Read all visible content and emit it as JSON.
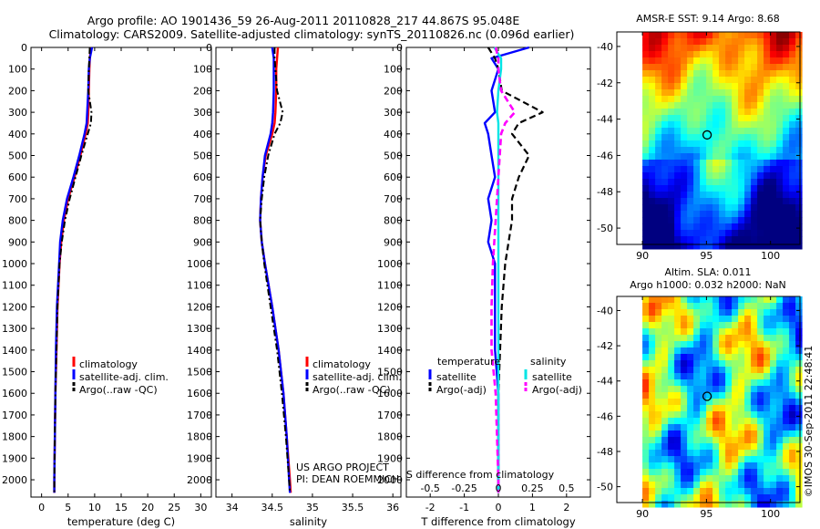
{
  "header": {
    "line1": "Argo profile: AO 1901436_59 26-Aug-2011 20110828_217 44.867S 95.048E",
    "line2": "Climatology: CARS2009. Satellite-adjusted climatology: synTS_20110826.nc (0.096d earlier)"
  },
  "colors": {
    "climatology": "#ff0000",
    "satellite": "#0000ff",
    "argo": "#000000",
    "t_satellite": "#0000ff",
    "s_satellite": "#00e5e5",
    "t_argo": "#000000",
    "s_argo": "#ff00ff"
  },
  "depth_ticks": [
    "0",
    "100",
    "200",
    "300",
    "400",
    "500",
    "600",
    "700",
    "800",
    "900",
    "1000",
    "1100",
    "1200",
    "1300",
    "1400",
    "1500",
    "1600",
    "1700",
    "1800",
    "1900",
    "2000"
  ],
  "chart_data": [
    {
      "type": "line",
      "name": "temperature",
      "xlabel": "temperature (deg C)",
      "xticks": [
        "0",
        "5",
        "10",
        "15",
        "20",
        "25",
        "30"
      ],
      "xlim": [
        -2,
        32
      ],
      "ylim": [
        2080,
        0
      ],
      "legend": [
        "climatology",
        "satellite-adj. clim.",
        "Argo(..raw -QC)"
      ],
      "depth": [
        0,
        50,
        100,
        200,
        300,
        350,
        400,
        500,
        600,
        700,
        800,
        900,
        1000,
        1200,
        1400,
        1600,
        1800,
        2000,
        2060
      ],
      "series": [
        {
          "name": "climatology",
          "values": [
            9.3,
            9.1,
            9.0,
            8.9,
            8.8,
            8.7,
            8.3,
            7.3,
            6.2,
            5.0,
            4.2,
            3.7,
            3.4,
            3.0,
            2.8,
            2.6,
            2.5,
            2.4,
            2.4
          ]
        },
        {
          "name": "satellite-adj. clim.",
          "values": [
            9.5,
            9.1,
            8.9,
            8.8,
            8.6,
            8.5,
            8.1,
            7.1,
            6.0,
            4.8,
            4.0,
            3.5,
            3.3,
            2.9,
            2.7,
            2.6,
            2.5,
            2.4,
            2.4
          ]
        },
        {
          "name": "Argo(..raw -QC)",
          "values": [
            9.1,
            9.0,
            8.9,
            8.8,
            9.4,
            9.3,
            8.7,
            7.5,
            6.4,
            5.3,
            4.4,
            3.8,
            3.4,
            3.0,
            2.8,
            2.6,
            2.5,
            2.4,
            2.4
          ]
        }
      ]
    },
    {
      "type": "line",
      "name": "salinity",
      "xlabel": "salinity",
      "xticks": [
        "34",
        "34.5",
        "35",
        "35.5",
        "36"
      ],
      "xlim": [
        33.8,
        36.1
      ],
      "ylim": [
        2080,
        0
      ],
      "legend": [
        "climatology",
        "satellite-adj. clim.",
        "Argo(..raw -QC)"
      ],
      "annotation": [
        "US ARGO PROJECT",
        "PI: DEAN ROEMMICH"
      ],
      "depth": [
        0,
        50,
        100,
        200,
        300,
        350,
        400,
        500,
        600,
        700,
        800,
        900,
        1000,
        1200,
        1400,
        1600,
        1800,
        2000,
        2060
      ],
      "series": [
        {
          "name": "climatology",
          "values": [
            34.57,
            34.56,
            34.55,
            34.55,
            34.54,
            34.53,
            34.5,
            34.42,
            34.38,
            34.36,
            34.35,
            34.37,
            34.41,
            34.5,
            34.58,
            34.64,
            34.68,
            34.72,
            34.73
          ]
        },
        {
          "name": "satellite-adj. clim.",
          "values": [
            34.5,
            34.52,
            34.52,
            34.52,
            34.51,
            34.5,
            34.48,
            34.41,
            34.38,
            34.36,
            34.35,
            34.37,
            34.41,
            34.5,
            34.58,
            34.64,
            34.68,
            34.71,
            34.72
          ]
        },
        {
          "name": "Argo(..raw -QC)",
          "values": [
            34.53,
            34.53,
            34.54,
            34.56,
            34.63,
            34.6,
            34.53,
            34.45,
            34.4,
            34.37,
            34.35,
            34.37,
            34.4,
            34.48,
            34.56,
            34.62,
            34.67,
            34.71,
            34.72
          ]
        }
      ]
    },
    {
      "type": "line",
      "name": "difference",
      "xlabel": "T difference from climatology",
      "xlabel_top": "S difference from climatology",
      "xticks": [
        "-2",
        "-1",
        "0",
        "1",
        "2"
      ],
      "xticks_top": [
        "-0.5",
        "-0.25",
        "0",
        "0.25",
        "0.5"
      ],
      "xlim": [
        -2.7,
        2.7
      ],
      "ylim": [
        2080,
        0
      ],
      "legend_headers": [
        "temperature",
        "salinity"
      ],
      "legend": [
        "satellite",
        "Argo(-adj)",
        "satellite",
        "Argo(-adj)"
      ],
      "depth": [
        0,
        50,
        100,
        200,
        300,
        350,
        400,
        500,
        600,
        700,
        800,
        900,
        1000,
        1200,
        1400,
        1600,
        1800,
        2000,
        2060
      ],
      "series": [
        {
          "name": "satellite",
          "values": [
            0.9,
            -0.2,
            0.0,
            -0.2,
            -0.1,
            -0.4,
            -0.3,
            -0.2,
            -0.1,
            -0.3,
            -0.2,
            -0.3,
            -0.1,
            -0.1,
            -0.1,
            0.0,
            0.0,
            0.0,
            0.0
          ]
        },
        {
          "name": "Argo(-adj)",
          "values": [
            -0.3,
            -0.1,
            0.0,
            0.1,
            1.3,
            0.6,
            0.4,
            0.9,
            0.6,
            0.4,
            0.4,
            0.3,
            0.2,
            0.1,
            0.05,
            0.0,
            0.0,
            0.0,
            0.0
          ]
        },
        {
          "name": "satellite",
          "values": [
            -0.03,
            0.02,
            0.02,
            0.0,
            -0.01,
            0.0,
            0.0,
            0.0,
            0.0,
            0.0,
            0.0,
            0.0,
            0.0,
            0.0,
            0.0,
            0.0,
            0.0,
            0.0,
            0.0
          ]
        },
        {
          "name": "Argo(-adj)",
          "values": [
            -0.02,
            0.0,
            0.0,
            0.02,
            0.12,
            0.05,
            0.02,
            0.01,
            0.0,
            -0.01,
            -0.02,
            -0.03,
            -0.04,
            -0.05,
            -0.05,
            -0.02,
            -0.01,
            0.0,
            0.0
          ]
        }
      ]
    }
  ],
  "maps": [
    {
      "title": "AMSR-E SST: 9.14  Argo: 8.68",
      "subtitle": "",
      "xticks": [
        "90",
        "95",
        "100"
      ],
      "yticks": [
        "-40",
        "-42",
        "-44",
        "-46",
        "-48",
        "-50"
      ],
      "xlim": [
        88,
        102.3
      ],
      "ylim": [
        -50.9,
        -39.2
      ],
      "marker": {
        "lon": 95.05,
        "lat": -44.87
      },
      "colormap": "jet",
      "style": "sst"
    },
    {
      "title": "Altim. SLA: 0.011",
      "subtitle": "Argo h1000: 0.032 h2000: NaN",
      "xticks": [
        "90",
        "95",
        "100"
      ],
      "yticks": [
        "-40",
        "-42",
        "-44",
        "-46",
        "-48",
        "-50"
      ],
      "xlim": [
        88,
        102.3
      ],
      "ylim": [
        -50.9,
        -39.2
      ],
      "marker": {
        "lon": 95.05,
        "lat": -44.87
      },
      "colormap": "jet",
      "style": "sla"
    }
  ],
  "credit": "©IMOS 30-Sep-2011 22:48:41"
}
